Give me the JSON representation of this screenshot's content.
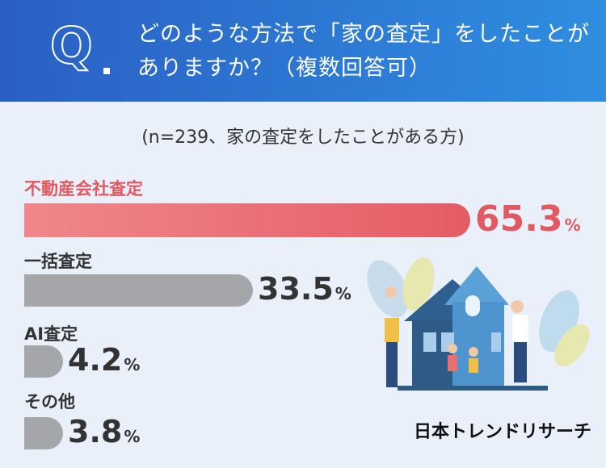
{
  "header": {
    "q_mark": "Q",
    "question": "どのような方法で「家の査定」をしたことがありますか？（複数回答可）"
  },
  "subtitle": "(n=239、家の査定をしたことがある方)",
  "chart_data": {
    "type": "bar",
    "orientation": "horizontal",
    "categories": [
      "不動産会社査定",
      "一括査定",
      "AI査定",
      "その他"
    ],
    "values": [
      65.3,
      33.5,
      4.2,
      3.8
    ],
    "value_labels": [
      "65.3",
      "33.5",
      "4.2",
      "3.8"
    ],
    "unit": "%",
    "colors": [
      "#e45c63",
      "#a4a6aa",
      "#a4a6aa",
      "#a4a6aa"
    ]
  },
  "brand": "日本トレンドリサーチ"
}
